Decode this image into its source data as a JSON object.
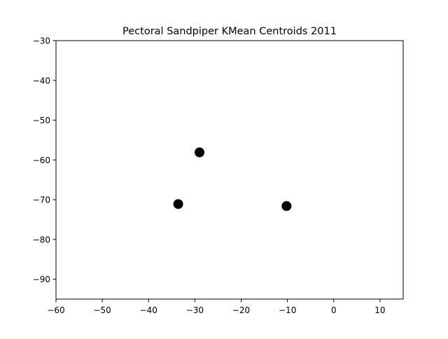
{
  "chart_data": {
    "type": "scatter",
    "title": "Pectoral Sandpiper KMean Centroids 2011",
    "xlabel": "",
    "ylabel": "",
    "xlim": [
      -60,
      15
    ],
    "ylim": [
      -95,
      -30
    ],
    "x_ticks": [
      -60,
      -50,
      -40,
      -30,
      -20,
      -10,
      0,
      10
    ],
    "y_ticks": [
      -30,
      -40,
      -50,
      -60,
      -70,
      -80,
      -90
    ],
    "x_tick_labels": [
      "−60",
      "−50",
      "−40",
      "−30",
      "−20",
      "−10",
      "0",
      "10"
    ],
    "y_tick_labels": [
      "−30",
      "−40",
      "−50",
      "−60",
      "−70",
      "−80",
      "−90"
    ],
    "grid": false,
    "points": [
      {
        "x": -29.0,
        "y": -58.1
      },
      {
        "x": -33.6,
        "y": -71.1
      },
      {
        "x": -10.2,
        "y": -71.6
      }
    ],
    "marker_color": "#000000"
  }
}
